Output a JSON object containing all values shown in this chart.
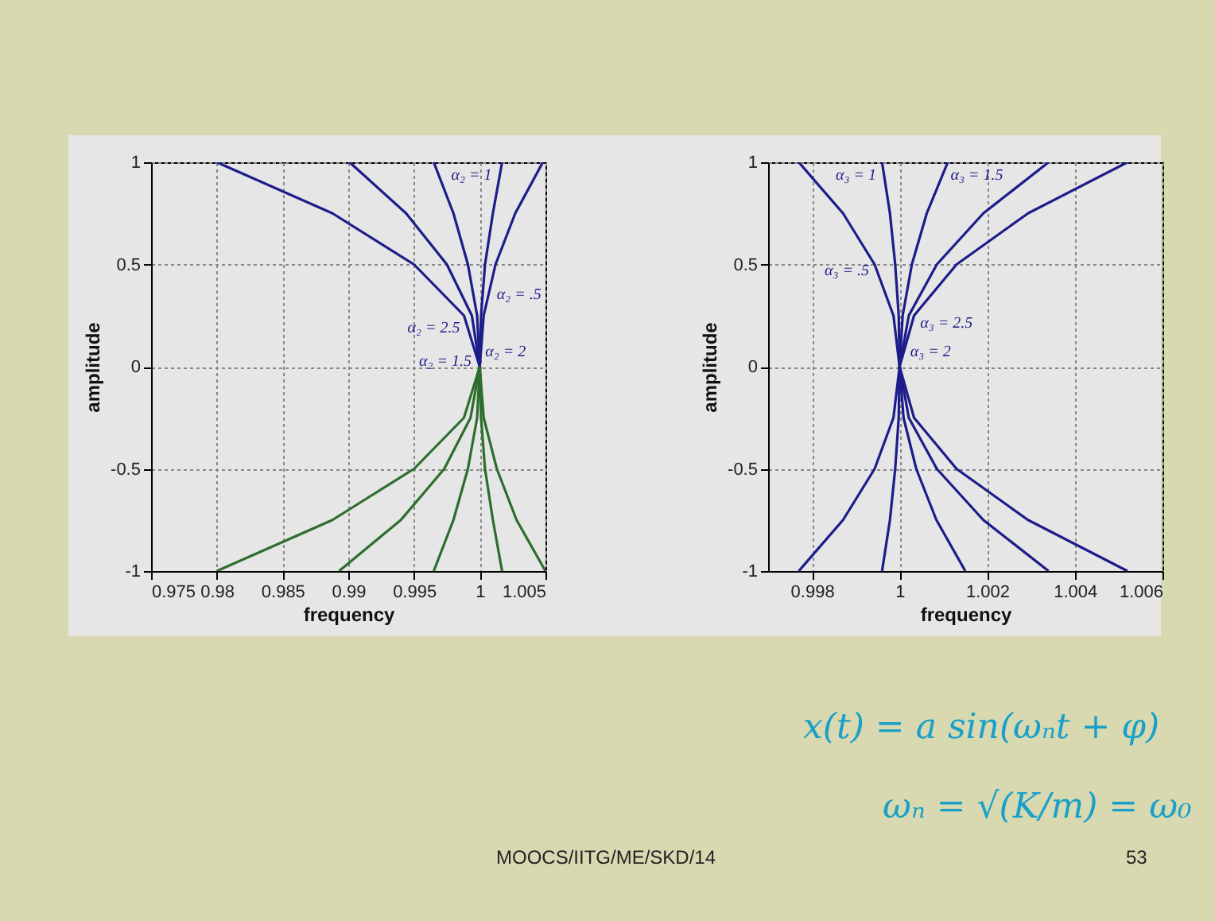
{
  "chart_data": [
    {
      "type": "line",
      "xlabel": "frequency",
      "ylabel": "amplitude",
      "xlim": [
        0.975,
        1.005
      ],
      "ylim": [
        -1,
        1
      ],
      "xticks": [
        0.975,
        0.98,
        0.985,
        0.99,
        0.995,
        1,
        1.005
      ],
      "yticks": [
        -1,
        -0.5,
        0,
        0.5,
        1
      ],
      "grid": true,
      "legend": false,
      "series": [
        {
          "name": "α₂ = 2.5",
          "color": "#1c1c8a",
          "x": [
            1,
            0.9988,
            0.995,
            0.9888,
            0.98
          ],
          "values": [
            0,
            0.25,
            0.5,
            0.75,
            1
          ]
        },
        {
          "name": "α₂ = 2",
          "color": "#1c1c8a",
          "x": [
            1,
            0.9994,
            0.9975,
            0.9944,
            0.9901
          ],
          "values": [
            0,
            0.25,
            0.5,
            0.75,
            1
          ]
        },
        {
          "name": "α₂ = 1.5",
          "color": "#1c1c8a",
          "x": [
            1,
            0.9998,
            0.9991,
            0.998,
            0.9965
          ],
          "values": [
            0,
            0.25,
            0.5,
            0.75,
            1
          ]
        },
        {
          "name": "α₂ = 1",
          "color": "#1c1c8a",
          "x": [
            1,
            1.0001,
            1.0004,
            1.001,
            1.0017
          ],
          "values": [
            0,
            0.25,
            0.5,
            0.75,
            1
          ]
        },
        {
          "name": "α₂ = .5",
          "color": "#1c1c8a",
          "x": [
            1,
            1.0003,
            1.0012,
            1.0027,
            1.0048
          ],
          "values": [
            0,
            0.25,
            0.5,
            0.75,
            1
          ]
        },
        {
          "color": "#2d6e2d",
          "x": [
            1,
            0.9988,
            0.995,
            0.9888,
            0.98
          ],
          "values": [
            0,
            -0.25,
            -0.5,
            -0.75,
            -1
          ]
        },
        {
          "color": "#2d6e2d",
          "x": [
            1,
            0.9993,
            0.9973,
            0.994,
            0.9893
          ],
          "values": [
            0,
            -0.25,
            -0.5,
            -0.75,
            -1
          ]
        },
        {
          "color": "#2d6e2d",
          "x": [
            1,
            0.9998,
            0.9991,
            0.998,
            0.9965
          ],
          "values": [
            0,
            -0.25,
            -0.5,
            -0.75,
            -1
          ]
        },
        {
          "color": "#2d6e2d",
          "x": [
            1,
            1.0001,
            1.0004,
            1.001,
            1.0017
          ],
          "values": [
            0,
            -0.25,
            -0.5,
            -0.75,
            -1
          ]
        },
        {
          "color": "#2d6e2d",
          "x": [
            1,
            1.0003,
            1.0013,
            1.0028,
            1.005
          ],
          "values": [
            0,
            -0.25,
            -0.5,
            -0.75,
            -1
          ]
        }
      ]
    },
    {
      "type": "line",
      "xlabel": "frequency",
      "ylabel": "amplitude",
      "xlim": [
        0.997,
        1.006
      ],
      "ylim": [
        -1,
        1
      ],
      "xticks": [
        0.998,
        1,
        1.002,
        1.004,
        1.006
      ],
      "yticks": [
        -1,
        -0.5,
        0,
        0.5,
        1
      ],
      "grid": true,
      "legend": false,
      "annotations": [
        "x(t) = a sin(ωₙt + φ)",
        "ωₙ = √(K/m) = ω₀",
        "MOOCS/IITG/ME/SKD/14",
        "53"
      ],
      "series": [
        {
          "name": "α₃ = .5",
          "color": "#1c1c8a",
          "x": [
            0.9977,
            0.99871,
            0.99943,
            0.99986,
            1,
            0.99986,
            0.99943,
            0.99871,
            0.9977
          ],
          "values": [
            -1,
            -0.75,
            -0.5,
            -0.25,
            0,
            0.25,
            0.5,
            0.75,
            1
          ]
        },
        {
          "name": "α₃ = 1",
          "color": "#1c1c8a",
          "x": [
            0.9996,
            0.99978,
            0.9999,
            0.99998,
            1,
            0.99998,
            0.9999,
            0.99978,
            0.9996
          ],
          "values": [
            -1,
            -0.75,
            -0.5,
            -0.25,
            0,
            0.25,
            0.5,
            0.75,
            1
          ]
        },
        {
          "name": "α₃ = 1.5",
          "color": "#1c1c8a",
          "x": [
            1.0015,
            1.00084,
            1.00038,
            1.00009,
            1,
            1.00007,
            1.00028,
            1.00062,
            1.0011
          ],
          "values": [
            -1,
            -0.75,
            -0.5,
            -0.25,
            0,
            0.25,
            0.5,
            0.75,
            1
          ]
        },
        {
          "name": "α₃ = 2",
          "color": "#1c1c8a",
          "x": [
            1.0034,
            1.00191,
            1.00085,
            1.00021,
            1,
            1.00021,
            1.00085,
            1.00191,
            1.0034
          ],
          "values": [
            -1,
            -0.75,
            -0.5,
            -0.25,
            0,
            0.25,
            0.5,
            0.75,
            1
          ]
        },
        {
          "name": "α₃ = 2.5",
          "color": "#1c1c8a",
          "x": [
            1.0052,
            1.00293,
            1.0013,
            1.00033,
            1,
            1.00033,
            1.0013,
            1.00293,
            1.0052
          ],
          "values": [
            -1,
            -0.75,
            -0.5,
            -0.25,
            0,
            0.25,
            0.5,
            0.75,
            1
          ]
        }
      ]
    }
  ]
}
